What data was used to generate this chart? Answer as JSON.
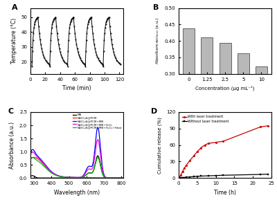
{
  "panel_A": {
    "title": "A",
    "xlabel": "Time (min)",
    "ylabel": "Temperature (°C)",
    "xlim": [
      0,
      125
    ],
    "ylim": [
      12,
      56
    ],
    "xticks": [
      0,
      20,
      40,
      60,
      80,
      100,
      120
    ],
    "yticks": [
      20,
      30,
      40,
      50
    ],
    "cycles": 5,
    "T_max": 50,
    "T_min": 17
  },
  "panel_B": {
    "title": "B",
    "xlabel": "Concentration (μg mL⁻¹)",
    "ylabel": "Absorbance$_{405 nm}$ (a.u.)",
    "categories": [
      "0",
      "1.25",
      "2.5",
      "5",
      "10"
    ],
    "values": [
      0.438,
      0.41,
      0.395,
      0.363,
      0.322
    ],
    "ylim": [
      0.3,
      0.5
    ],
    "yticks": [
      0.3,
      0.35,
      0.4,
      0.45,
      0.5
    ],
    "bar_color": "#b8b8b8",
    "bar_edge_color": "#333333"
  },
  "panel_C": {
    "title": "C",
    "xlabel": "Wavelength (nm)",
    "ylabel": "Absorbance (a.u.)",
    "xlim": [
      280,
      810
    ],
    "ylim": [
      0,
      2.5
    ],
    "xticks": [
      300,
      400,
      500,
      600,
      700,
      800
    ],
    "yticks": [
      0.0,
      0.5,
      1.0,
      1.5,
      2.0,
      2.5
    ],
    "legend": [
      "NB/CuS@PCM+MB+H₂O₂+Heat",
      "NB/CuS@PCM+MB+H₂O₂",
      "NB/CuS@PCM+MB",
      "NB/CuS@PCM",
      "MB"
    ],
    "colors": [
      "#00bb00",
      "#ee00ee",
      "#0000ee",
      "#ee2200",
      "#000000"
    ]
  },
  "panel_D": {
    "title": "D",
    "xlabel": "Time (h)",
    "ylabel": "Cumulative release (%)",
    "xlim": [
      0,
      24
    ],
    "ylim": [
      0,
      120
    ],
    "xticks": [
      0,
      5,
      10,
      15,
      20,
      25
    ],
    "yticks": [
      0,
      30,
      60,
      90,
      120
    ],
    "legend": [
      "With laser treatment",
      "Without laser treatment"
    ],
    "colors": [
      "#cc0000",
      "#000000"
    ],
    "t_laser": [
      0,
      0.5,
      1,
      1.5,
      2,
      3,
      4,
      5,
      6,
      7,
      8,
      10,
      12,
      22,
      24
    ],
    "r_laser": [
      0,
      5,
      12,
      18,
      23,
      32,
      40,
      48,
      55,
      60,
      63,
      65,
      67,
      93,
      95
    ],
    "t_no": [
      0,
      0.5,
      1,
      2,
      3,
      4,
      5,
      6,
      8,
      10,
      12,
      22,
      24
    ],
    "r_no": [
      0,
      0.3,
      0.8,
      1.5,
      2.0,
      2.5,
      3.0,
      3.5,
      4.0,
      4.5,
      5.0,
      6.5,
      7.0
    ]
  }
}
